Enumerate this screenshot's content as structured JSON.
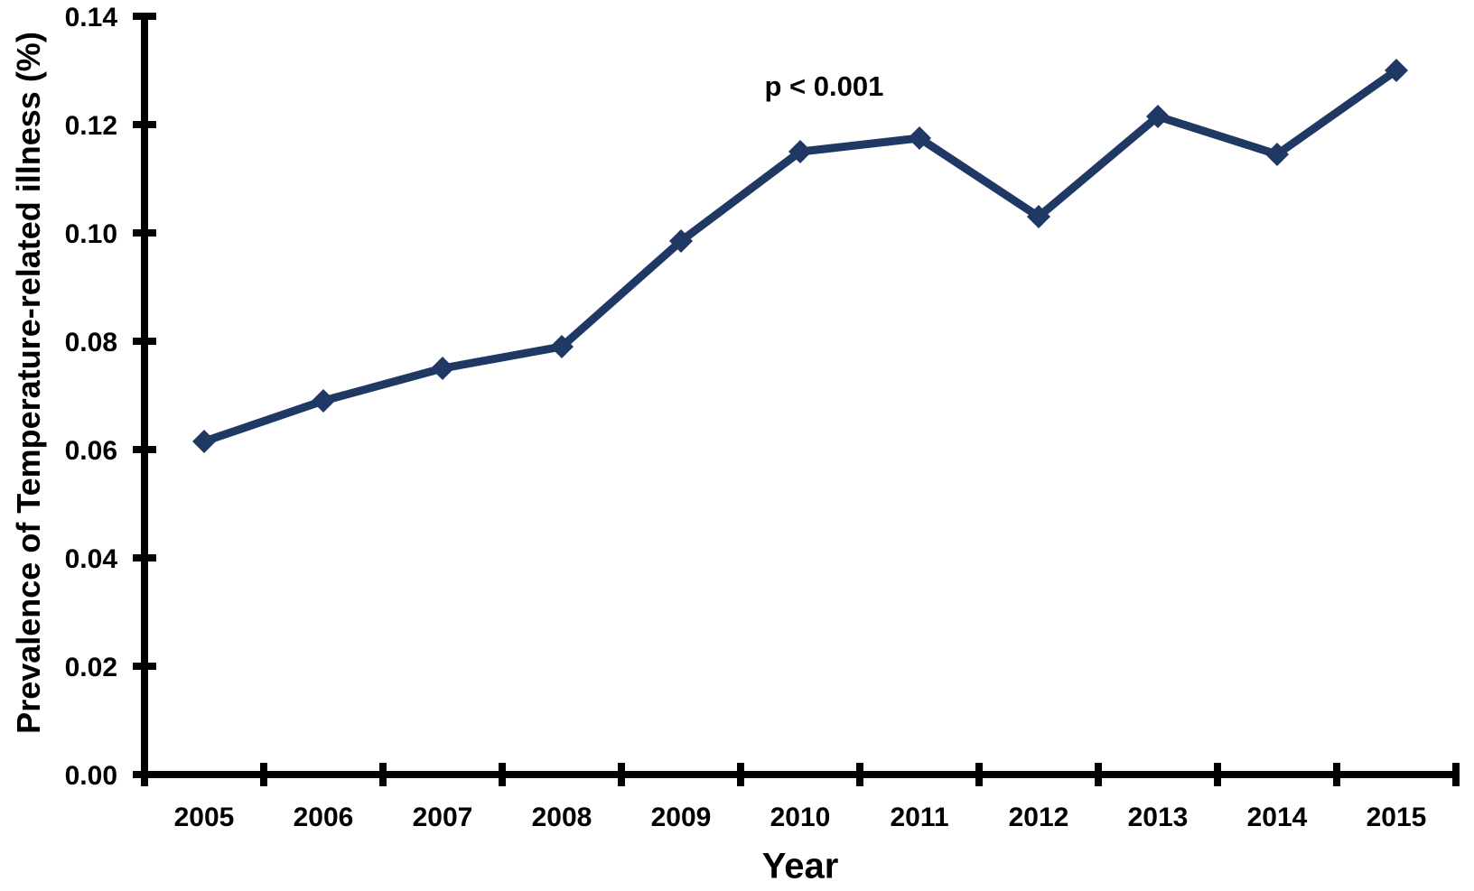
{
  "figure": {
    "background": "#FFFFFF"
  },
  "chart_data": {
    "type": "line",
    "title": "",
    "xlabel": "Year",
    "ylabel": "Prevalence of Temperature-related illness (%)",
    "categories": [
      "2005",
      "2006",
      "2007",
      "2008",
      "2009",
      "2010",
      "2011",
      "2012",
      "2013",
      "2014",
      "2015"
    ],
    "series": [
      {
        "name": "Prevalence of temperature-related illness",
        "values": [
          0.0615,
          0.069,
          0.075,
          0.079,
          0.0985,
          0.115,
          0.1175,
          0.103,
          0.1215,
          0.1145,
          0.13
        ],
        "color": "#1F3864",
        "marker": "diamond"
      }
    ],
    "ylim": [
      0.0,
      0.14
    ],
    "ytick_step": 0.02,
    "ytick_decimals": 2,
    "grid": false,
    "legend": false,
    "axis_color": "#000000",
    "text_color": "#000000",
    "annotations": [
      {
        "text": "p < 0.001",
        "x_year": 2010.2,
        "y_value": 0.127
      }
    ]
  }
}
